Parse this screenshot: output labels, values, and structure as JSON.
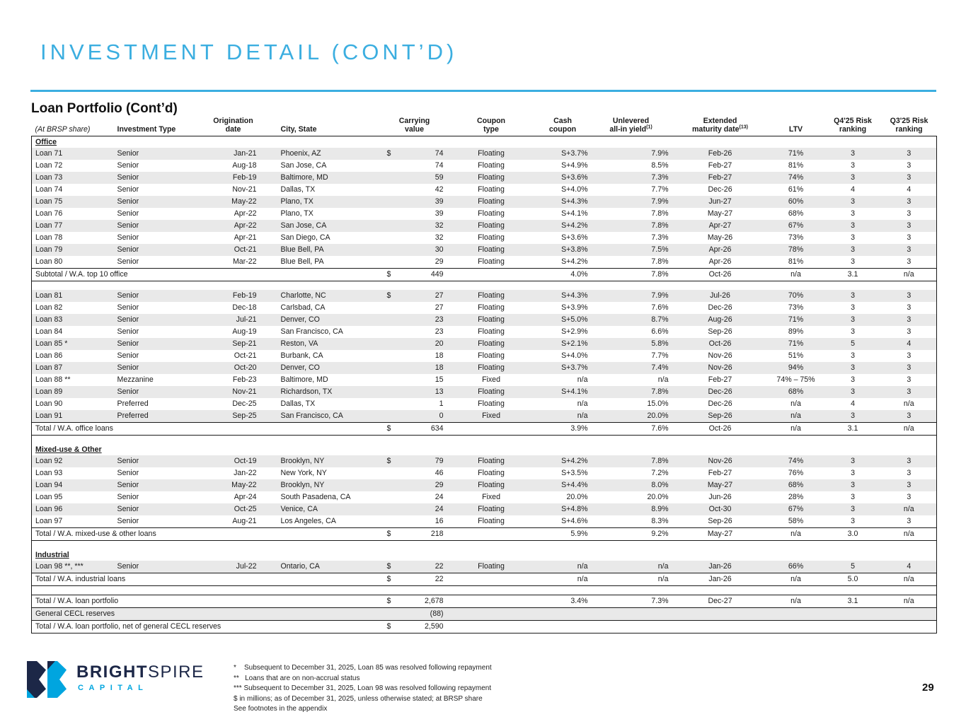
{
  "slide": {
    "title": "INVESTMENT DETAIL (CONT’D)",
    "section_title": "Loan Portfolio (Cont’d)",
    "page_number": "29"
  },
  "colors": {
    "accent_blue": "#3BAEE0",
    "brand_navy": "#1C2747",
    "brand_blue": "#00A5DF",
    "row_stripe": "#E9E9E9"
  },
  "logo": {
    "bright": "BRIGHT",
    "spire": "SPIRE",
    "capital": "CAPITAL"
  },
  "table": {
    "headers": [
      {
        "line2": "(At BRSP share)",
        "cls": "c0 italic"
      },
      {
        "line2": "Investment Type",
        "cls": "c1"
      },
      {
        "line1": "Origination",
        "line2": "date",
        "cls": "hc"
      },
      {
        "line2": "City, State",
        "cls": "c3"
      },
      {
        "line1": "Carrying",
        "line2": "value",
        "cls": "hc",
        "colspan": 2
      },
      {
        "line1": "Coupon",
        "line2": "type",
        "cls": "hc"
      },
      {
        "line1": "Cash",
        "line2": "coupon",
        "cls": "hc"
      },
      {
        "line1": "Unlevered",
        "line2": "all-in yield",
        "sup": "(1)",
        "cls": "hc"
      },
      {
        "line1": "Extended",
        "line2": "maturity date",
        "sup": "(13)",
        "cls": "hc"
      },
      {
        "line2": "LTV",
        "cls": "hc"
      },
      {
        "line1": "Q4'25 Risk",
        "line2": "ranking",
        "cls": "hc"
      },
      {
        "line1": "Q3'25 Risk",
        "line2": "ranking",
        "cls": "hc"
      }
    ],
    "rows": [
      {
        "kind": "section",
        "label": "Office"
      },
      {
        "kind": "data",
        "cells": [
          "Loan 71",
          "Senior",
          "Jan-21",
          "Phoenix, AZ",
          "$",
          "74",
          "Floating",
          "S+3.7%",
          "7.9%",
          "Feb-26",
          "71%",
          "3",
          "3"
        ]
      },
      {
        "kind": "data",
        "cells": [
          "Loan 72",
          "Senior",
          "Aug-18",
          "San Jose, CA",
          "",
          "74",
          "Floating",
          "S+4.9%",
          "8.5%",
          "Feb-27",
          "81%",
          "3",
          "3"
        ]
      },
      {
        "kind": "data",
        "cells": [
          "Loan 73",
          "Senior",
          "Feb-19",
          "Baltimore, MD",
          "",
          "59",
          "Floating",
          "S+3.6%",
          "7.3%",
          "Feb-27",
          "74%",
          "3",
          "3"
        ]
      },
      {
        "kind": "data",
        "cells": [
          "Loan 74",
          "Senior",
          "Nov-21",
          "Dallas, TX",
          "",
          "42",
          "Floating",
          "S+4.0%",
          "7.7%",
          "Dec-26",
          "61%",
          "4",
          "4"
        ]
      },
      {
        "kind": "data",
        "cells": [
          "Loan 75",
          "Senior",
          "May-22",
          "Plano, TX",
          "",
          "39",
          "Floating",
          "S+4.3%",
          "7.9%",
          "Jun-27",
          "60%",
          "3",
          "3"
        ]
      },
      {
        "kind": "data",
        "cells": [
          "Loan 76",
          "Senior",
          "Apr-22",
          "Plano, TX",
          "",
          "39",
          "Floating",
          "S+4.1%",
          "7.8%",
          "May-27",
          "68%",
          "3",
          "3"
        ]
      },
      {
        "kind": "data",
        "cells": [
          "Loan 77",
          "Senior",
          "Apr-22",
          "San Jose, CA",
          "",
          "32",
          "Floating",
          "S+4.2%",
          "7.8%",
          "Apr-27",
          "67%",
          "3",
          "3"
        ]
      },
      {
        "kind": "data",
        "cells": [
          "Loan 78",
          "Senior",
          "Apr-21",
          "San Diego, CA",
          "",
          "32",
          "Floating",
          "S+3.6%",
          "7.3%",
          "May-26",
          "73%",
          "3",
          "3"
        ]
      },
      {
        "kind": "data",
        "cells": [
          "Loan 79",
          "Senior",
          "Oct-21",
          "Blue Bell, PA",
          "",
          "30",
          "Floating",
          "S+3.8%",
          "7.5%",
          "Apr-26",
          "78%",
          "3",
          "3"
        ]
      },
      {
        "kind": "data",
        "cells": [
          "Loan 80",
          "Senior",
          "Mar-22",
          "Blue Bell, PA",
          "",
          "29",
          "Floating",
          "S+4.2%",
          "7.8%",
          "Apr-26",
          "81%",
          "3",
          "3"
        ]
      },
      {
        "kind": "total",
        "cells": [
          "Subtotal / W.A. top 10 office",
          "$",
          "449",
          "",
          "4.0%",
          "7.8%",
          "Oct-26",
          "n/a",
          "3.1",
          "n/a"
        ]
      },
      {
        "kind": "gap"
      },
      {
        "kind": "data",
        "cells": [
          "Loan 81",
          "Senior",
          "Feb-19",
          "Charlotte, NC",
          "$",
          "27",
          "Floating",
          "S+4.3%",
          "7.9%",
          "Jul-26",
          "70%",
          "3",
          "3"
        ]
      },
      {
        "kind": "data",
        "cells": [
          "Loan 82",
          "Senior",
          "Dec-18",
          "Carlsbad, CA",
          "",
          "27",
          "Floating",
          "S+3.9%",
          "7.6%",
          "Dec-26",
          "73%",
          "3",
          "3"
        ]
      },
      {
        "kind": "data",
        "cells": [
          "Loan 83",
          "Senior",
          "Jul-21",
          "Denver, CO",
          "",
          "23",
          "Floating",
          "S+5.0%",
          "8.7%",
          "Aug-26",
          "71%",
          "3",
          "3"
        ]
      },
      {
        "kind": "data",
        "cells": [
          "Loan 84",
          "Senior",
          "Aug-19",
          "San Francisco, CA",
          "",
          "23",
          "Floating",
          "S+2.9%",
          "6.6%",
          "Sep-26",
          "89%",
          "3",
          "3"
        ]
      },
      {
        "kind": "data",
        "cells": [
          "Loan 85 *",
          "Senior",
          "Sep-21",
          "Reston, VA",
          "",
          "20",
          "Floating",
          "S+2.1%",
          "5.8%",
          "Oct-26",
          "71%",
          "5",
          "4"
        ]
      },
      {
        "kind": "data",
        "cells": [
          "Loan 86",
          "Senior",
          "Oct-21",
          "Burbank, CA",
          "",
          "18",
          "Floating",
          "S+4.0%",
          "7.7%",
          "Nov-26",
          "51%",
          "3",
          "3"
        ]
      },
      {
        "kind": "data",
        "cells": [
          "Loan 87",
          "Senior",
          "Oct-20",
          "Denver, CO",
          "",
          "18",
          "Floating",
          "S+3.7%",
          "7.4%",
          "Nov-26",
          "94%",
          "3",
          "3"
        ]
      },
      {
        "kind": "data",
        "cells": [
          "Loan 88 **",
          "Mezzanine",
          "Feb-23",
          "Baltimore, MD",
          "",
          "15",
          "Fixed",
          "n/a",
          "n/a",
          "Feb-27",
          "74% – 75%",
          "3",
          "3"
        ]
      },
      {
        "kind": "data",
        "cells": [
          "Loan 89",
          "Senior",
          "Nov-21",
          "Richardson, TX",
          "",
          "13",
          "Floating",
          "S+4.1%",
          "7.8%",
          "Dec-26",
          "68%",
          "3",
          "3"
        ]
      },
      {
        "kind": "data",
        "cells": [
          "Loan 90",
          "Preferred",
          "Dec-25",
          "Dallas, TX",
          "",
          "1",
          "Floating",
          "n/a",
          "15.0%",
          "Dec-26",
          "n/a",
          "4",
          "n/a"
        ]
      },
      {
        "kind": "data",
        "cells": [
          "Loan 91",
          "Preferred",
          "Sep-25",
          "San Francisco, CA",
          "",
          "0",
          "Fixed",
          "n/a",
          "20.0%",
          "Sep-26",
          "n/a",
          "3",
          "3"
        ]
      },
      {
        "kind": "total",
        "cells": [
          "Total / W.A. office loans",
          "$",
          "634",
          "",
          "3.9%",
          "7.6%",
          "Oct-26",
          "n/a",
          "3.1",
          "n/a"
        ]
      },
      {
        "kind": "gap"
      },
      {
        "kind": "section",
        "label": "Mixed-use & Other"
      },
      {
        "kind": "data",
        "cells": [
          "Loan 92",
          "Senior",
          "Oct-19",
          "Brooklyn, NY",
          "$",
          "79",
          "Floating",
          "S+4.2%",
          "7.8%",
          "Nov-26",
          "74%",
          "3",
          "3"
        ]
      },
      {
        "kind": "data",
        "cells": [
          "Loan 93",
          "Senior",
          "Jan-22",
          "New York, NY",
          "",
          "46",
          "Floating",
          "S+3.5%",
          "7.2%",
          "Feb-27",
          "76%",
          "3",
          "3"
        ]
      },
      {
        "kind": "data",
        "cells": [
          "Loan 94",
          "Senior",
          "May-22",
          "Brooklyn, NY",
          "",
          "29",
          "Floating",
          "S+4.4%",
          "8.0%",
          "May-27",
          "68%",
          "3",
          "3"
        ]
      },
      {
        "kind": "data",
        "cells": [
          "Loan 95",
          "Senior",
          "Apr-24",
          "South Pasadena, CA",
          "",
          "24",
          "Fixed",
          "20.0%",
          "20.0%",
          "Jun-26",
          "28%",
          "3",
          "3"
        ]
      },
      {
        "kind": "data",
        "cells": [
          "Loan 96",
          "Senior",
          "Oct-25",
          "Venice, CA",
          "",
          "24",
          "Floating",
          "S+4.8%",
          "8.9%",
          "Oct-30",
          "67%",
          "3",
          "n/a"
        ]
      },
      {
        "kind": "data",
        "cells": [
          "Loan 97",
          "Senior",
          "Aug-21",
          "Los Angeles, CA",
          "",
          "16",
          "Floating",
          "S+4.6%",
          "8.3%",
          "Sep-26",
          "58%",
          "3",
          "3"
        ]
      },
      {
        "kind": "total",
        "cells": [
          "Total / W.A. mixed-use & other loans",
          "$",
          "218",
          "",
          "5.9%",
          "9.2%",
          "May-27",
          "n/a",
          "3.0",
          "n/a"
        ]
      },
      {
        "kind": "gap"
      },
      {
        "kind": "section",
        "label": "Industrial"
      },
      {
        "kind": "data",
        "cells": [
          "Loan 98 **, ***",
          "Senior",
          "Jul-22",
          "Ontario, CA",
          "$",
          "22",
          "Floating",
          "n/a",
          "n/a",
          "Jan-26",
          "66%",
          "5",
          "4"
        ]
      },
      {
        "kind": "total",
        "cells": [
          "Total / W.A. industrial loans",
          "$",
          "22",
          "",
          "n/a",
          "n/a",
          "Jan-26",
          "n/a",
          "5.0",
          "n/a"
        ]
      },
      {
        "kind": "gap"
      },
      {
        "kind": "total",
        "cells": [
          "Total / W.A. loan portfolio",
          "$",
          "2,678",
          "",
          "3.4%",
          "7.3%",
          "Dec-27",
          "n/a",
          "3.1",
          "n/a"
        ]
      },
      {
        "kind": "total",
        "shade": true,
        "cells": [
          "General CECL reserves",
          "",
          "(88)",
          "",
          "",
          "",
          "",
          "",
          "",
          ""
        ]
      },
      {
        "kind": "total",
        "cells": [
          "Total / W.A. loan portfolio, net of general CECL reserves",
          "$",
          "2,590",
          "",
          "",
          "",
          "",
          "",
          "",
          ""
        ]
      }
    ]
  },
  "footnotes": [
    "*    Subsequent to December 31, 2025, Loan 85 was resolved following repayment",
    "**   Loans that are on non-accrual status",
    "*** Subsequent to December 31, 2025, Loan 98 was resolved following repayment",
    "$ in millions; as of December 31, 2025, unless otherwise stated; at BRSP share",
    "See footnotes in the appendix"
  ]
}
